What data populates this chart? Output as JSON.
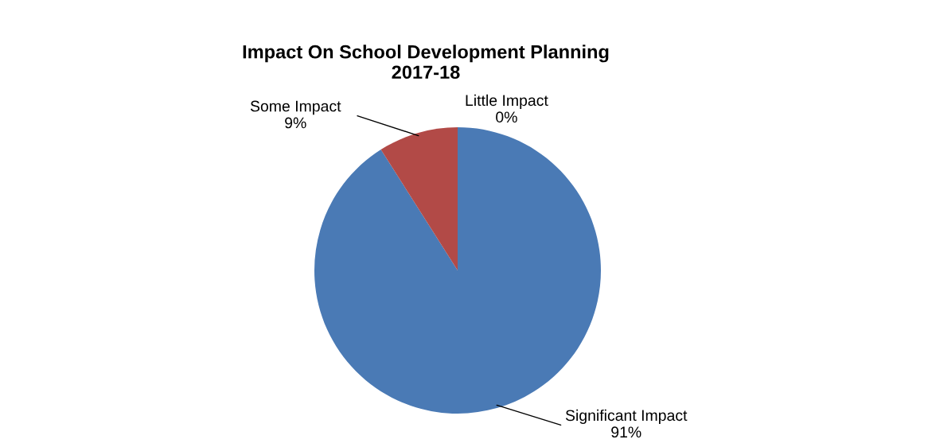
{
  "chart_data": {
    "type": "pie",
    "title": "Impact On School Development Planning\n2017-18",
    "categories": [
      "Significant Impact",
      "Some Impact",
      "Little Impact"
    ],
    "values": [
      91,
      9,
      0
    ],
    "colors": [
      "#4a7ab5",
      "#b24a47",
      "#9bbb59"
    ],
    "value_labels": [
      "91%",
      "9%",
      "0%"
    ],
    "legend": false
  }
}
